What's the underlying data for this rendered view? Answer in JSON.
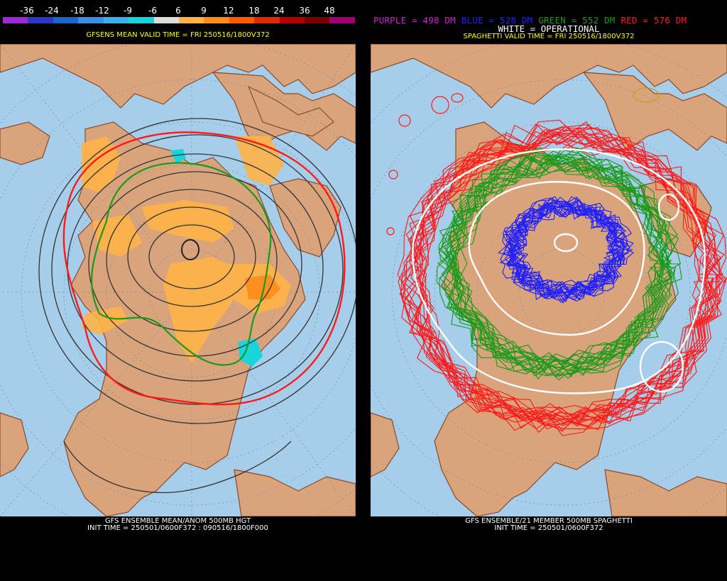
{
  "left_panel": {
    "colorbar": {
      "labels": [
        "-36",
        "-24",
        "-18",
        "-12",
        "-9",
        "-6",
        "6",
        "9",
        "12",
        "18",
        "24",
        "36",
        "48"
      ],
      "colors": [
        "#9b2bd6",
        "#2a37c8",
        "#1a67c9",
        "#3c8fe0",
        "#3ab0e8",
        "#18d4dc",
        "#dcdcdc",
        "#ffb347",
        "#ff8c1a",
        "#ff5a00",
        "#e02a00",
        "#b50000",
        "#7a0000",
        "#a00070"
      ]
    },
    "subtitle": "GFSENS MEAN VALID TIME = FRI 250516/1800V372",
    "footer_line1": "GFS ENSEMBLE MEAN/ANOM 500MB HGT",
    "footer_line2": "INIT TIME = 250501/0600F372 : 090516/1800F000"
  },
  "right_panel": {
    "legend": {
      "purple": "PURPLE = 498 DM",
      "blue": "BLUE = 528 DM",
      "green": "GREEN = 552 DM",
      "red": "RED = 576 DM",
      "operational": "WHITE = OPERATIONAL"
    },
    "legend_colors": {
      "purple": "#d020d0",
      "blue": "#2020ff",
      "green": "#1a9a1a",
      "red": "#ff1a1a",
      "white": "#ffffff"
    },
    "subtitle": "SPAGHETTI VALID TIME = FRI 250516/1800V372",
    "footer_line1": "GFS ENSEMBLE/21 MEMBER 500MB SPAGHETTI",
    "footer_line2": "INIT TIME = 250501/0600F372"
  },
  "map_colors": {
    "ocean": "#a6cdea",
    "land": "#d9a47c",
    "border": "#8a4a2a",
    "graticule": "#6a8fb0"
  }
}
